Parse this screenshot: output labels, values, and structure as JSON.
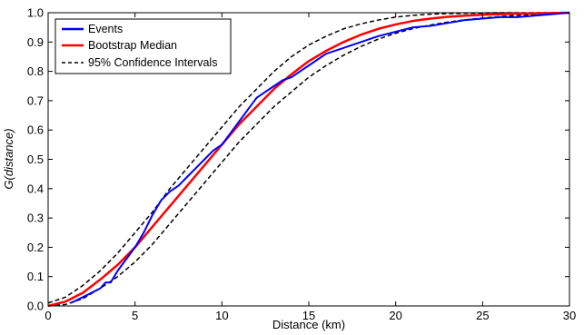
{
  "chart_data": {
    "type": "line",
    "title": "",
    "xlabel": "Distance (km)",
    "ylabel": "G(distance)",
    "xlim": [
      0,
      30
    ],
    "ylim": [
      0,
      1
    ],
    "xticks": [
      "0",
      "5",
      "10",
      "15",
      "20",
      "25",
      "30"
    ],
    "yticks": [
      "0.0",
      "0.1",
      "0.2",
      "0.3",
      "0.4",
      "0.5",
      "0.6",
      "0.7",
      "0.8",
      "0.9",
      "1.0"
    ],
    "grid": false,
    "legend_position": "top-left",
    "series": [
      {
        "name": "Events",
        "color": "#0000ff",
        "style": "solid",
        "x": [
          1.3,
          2,
          3,
          3.3,
          3.6,
          4,
          5,
          5.5,
          6,
          6.5,
          7,
          7.5,
          8,
          8.5,
          9,
          9.5,
          10,
          10.5,
          11,
          11.5,
          12,
          12.5,
          13,
          13.5,
          14,
          14.5,
          15,
          16,
          17,
          18,
          19,
          20,
          21,
          22,
          23,
          24,
          25,
          26,
          27,
          28,
          29,
          30
        ],
        "y": [
          0.01,
          0.03,
          0.06,
          0.08,
          0.08,
          0.12,
          0.2,
          0.25,
          0.31,
          0.36,
          0.39,
          0.41,
          0.44,
          0.47,
          0.5,
          0.53,
          0.55,
          0.59,
          0.63,
          0.67,
          0.71,
          0.73,
          0.75,
          0.77,
          0.78,
          0.8,
          0.82,
          0.86,
          0.88,
          0.9,
          0.92,
          0.935,
          0.95,
          0.955,
          0.965,
          0.975,
          0.98,
          0.985,
          0.985,
          0.99,
          0.995,
          1.0
        ]
      },
      {
        "name": "Bootstrap Median",
        "color": "#ff0000",
        "style": "solid",
        "x": [
          0,
          1,
          2,
          3,
          4,
          5,
          6,
          7,
          8,
          9,
          10,
          11,
          12,
          13,
          14,
          15,
          16,
          17,
          18,
          19,
          20,
          21,
          22,
          23,
          24,
          25,
          26,
          27,
          28,
          29,
          30
        ],
        "y": [
          0,
          0.015,
          0.045,
          0.09,
          0.14,
          0.2,
          0.27,
          0.34,
          0.41,
          0.48,
          0.55,
          0.62,
          0.68,
          0.74,
          0.79,
          0.835,
          0.87,
          0.9,
          0.925,
          0.945,
          0.96,
          0.972,
          0.98,
          0.986,
          0.99,
          0.993,
          0.995,
          0.997,
          0.998,
          0.999,
          1.0
        ]
      },
      {
        "name": "95% Confidence Intervals",
        "color": "#000000",
        "style": "dashed",
        "x": [
          0,
          1,
          2,
          3,
          4,
          5,
          6,
          7,
          8,
          9,
          10,
          11,
          12,
          13,
          14,
          15,
          16,
          17,
          18,
          19,
          20,
          21,
          22,
          23,
          24,
          25,
          26,
          27,
          28,
          29,
          30
        ],
        "y": [
          0.01,
          0.03,
          0.07,
          0.12,
          0.18,
          0.25,
          0.32,
          0.4,
          0.47,
          0.54,
          0.61,
          0.68,
          0.74,
          0.8,
          0.85,
          0.89,
          0.92,
          0.945,
          0.962,
          0.975,
          0.985,
          0.991,
          0.995,
          0.997,
          0.998,
          0.999,
          1.0,
          1.0,
          1.0,
          1.0,
          1.0
        ]
      },
      {
        "name": "",
        "color": "#000000",
        "style": "dashed",
        "x": [
          0,
          1,
          2,
          3,
          4,
          5,
          6,
          7,
          8,
          9,
          10,
          11,
          12,
          13,
          14,
          15,
          16,
          17,
          18,
          19,
          20,
          21,
          22,
          23,
          24,
          25,
          26,
          27,
          28,
          29,
          30
        ],
        "y": [
          0,
          0.005,
          0.025,
          0.06,
          0.1,
          0.15,
          0.21,
          0.28,
          0.35,
          0.42,
          0.49,
          0.56,
          0.62,
          0.68,
          0.73,
          0.78,
          0.82,
          0.855,
          0.885,
          0.91,
          0.93,
          0.946,
          0.958,
          0.968,
          0.976,
          0.982,
          0.987,
          0.991,
          0.994,
          0.997,
          0.999
        ]
      }
    ],
    "legend": [
      "Events",
      "Bootstrap Median",
      "95% Confidence Intervals"
    ]
  }
}
